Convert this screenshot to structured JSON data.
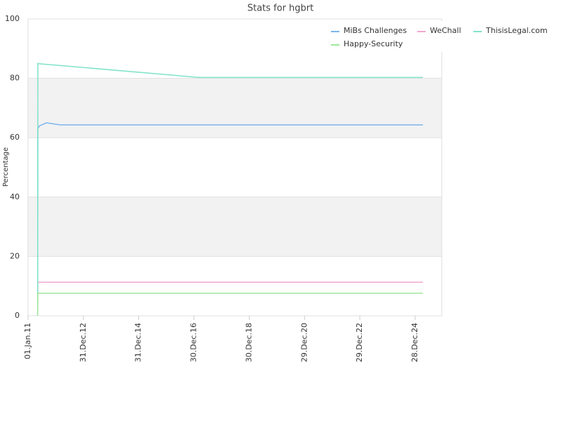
{
  "chart_data": {
    "type": "line",
    "title": "Stats for hgbrt",
    "y_label": "Percentage",
    "x": [
      "2011-05-08",
      "2011-05-10",
      "2011-06-01",
      "2011-09-01",
      "2012-03-01",
      "2017-03-01",
      "2025-04-10"
    ],
    "series": [
      {
        "name": "MiBs Challenges",
        "color": "#7cb5ec",
        "values": [
          0,
          63,
          64,
          65,
          64.3,
          64.3,
          64.3
        ]
      },
      {
        "name": "WeChall",
        "color": "#f2a7d0",
        "values": [
          0,
          11.3,
          11.3,
          11.3,
          11.3,
          11.3,
          11.3
        ]
      },
      {
        "name": "ThisisLegal.com",
        "color": "#7fe3c8",
        "values": [
          0,
          85,
          84.9,
          84.7,
          84.3,
          80.3,
          80.3
        ]
      },
      {
        "name": "Happy-Security",
        "color": "#9ee89a",
        "values": [
          0,
          7.6,
          7.6,
          7.6,
          7.6,
          7.6,
          7.6
        ]
      }
    ],
    "xlim": [
      "2011-01-01",
      "2025-12-15"
    ],
    "xticks": [
      {
        "value": "2011-01-01",
        "label": "01.Jan.11"
      },
      {
        "value": "2012-12-31",
        "label": "31.Dec.12"
      },
      {
        "value": "2014-12-31",
        "label": "31.Dec.14"
      },
      {
        "value": "2016-12-30",
        "label": "30.Dec.16"
      },
      {
        "value": "2018-12-30",
        "label": "30.Dec.18"
      },
      {
        "value": "2020-12-29",
        "label": "29.Dec.20"
      },
      {
        "value": "2022-12-29",
        "label": "29.Dec.22"
      },
      {
        "value": "2024-12-28",
        "label": "28.Dec.24"
      }
    ],
    "ylim": [
      0,
      100
    ],
    "yticks": [
      0,
      20,
      40,
      60,
      80,
      100
    ],
    "grid": true,
    "band_color": "#f2f2f2",
    "legend": "top-right"
  }
}
